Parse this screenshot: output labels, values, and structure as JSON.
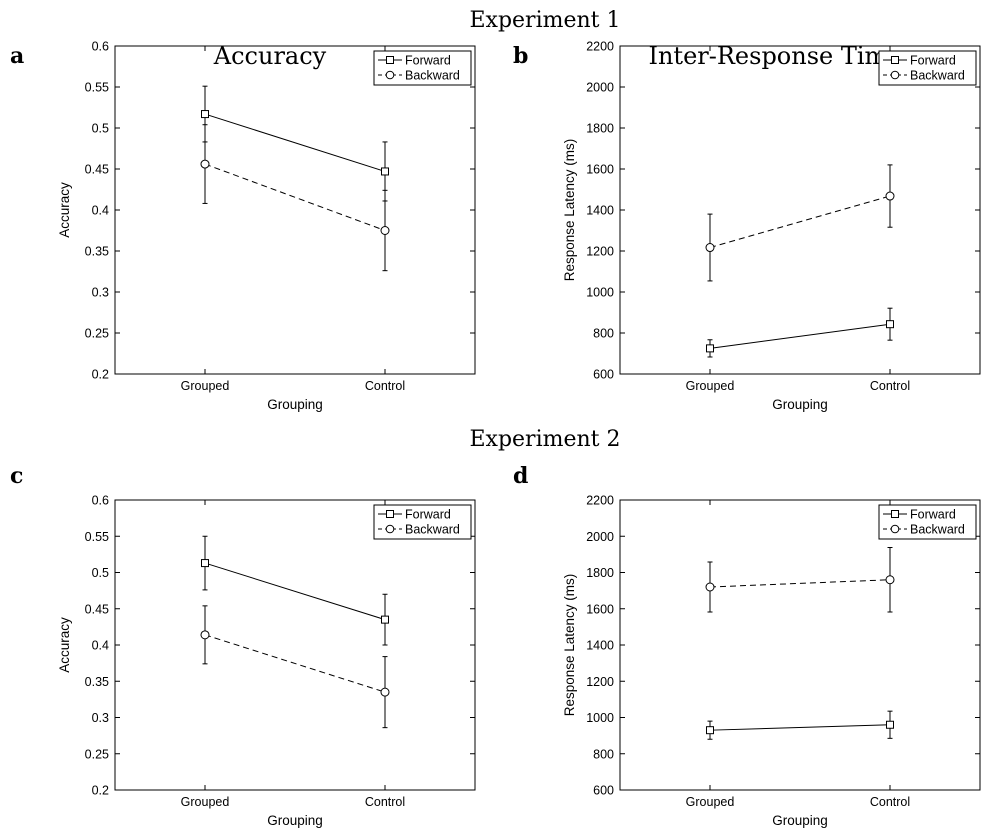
{
  "figure": {
    "experiment_titles": [
      "Experiment 1",
      "Experiment 2"
    ]
  },
  "chart_data": [
    {
      "panel": "a",
      "experiment": "Experiment 1",
      "type": "line",
      "title": "Accuracy",
      "xlabel": "Grouping",
      "ylabel": "Accuracy",
      "categories": [
        "Grouped",
        "Control"
      ],
      "ylim": [
        0.2,
        0.6
      ],
      "yticks": [
        0.2,
        0.25,
        0.3,
        0.35,
        0.4,
        0.45,
        0.5,
        0.55,
        0.6
      ],
      "ytick_labels": [
        "0.2",
        "0.25",
        "0.3",
        "0.35",
        "0.4",
        "0.45",
        "0.5",
        "0.55",
        "0.6"
      ],
      "legend_position": "top-right",
      "grid": false,
      "series": [
        {
          "name": "Forward",
          "marker": "square",
          "dash": "solid",
          "values": [
            0.517,
            0.447
          ],
          "err": [
            0.034,
            0.036
          ]
        },
        {
          "name": "Backward",
          "marker": "circle",
          "dash": "dashed",
          "values": [
            0.456,
            0.375
          ],
          "err": [
            0.048,
            0.049
          ]
        }
      ]
    },
    {
      "panel": "b",
      "experiment": "Experiment 1",
      "type": "line",
      "title": "Inter-Response Time",
      "xlabel": "Grouping",
      "ylabel": "Response Latency (ms)",
      "categories": [
        "Grouped",
        "Control"
      ],
      "ylim": [
        600,
        2200
      ],
      "yticks": [
        600,
        800,
        1000,
        1200,
        1400,
        1600,
        1800,
        2000,
        2200
      ],
      "ytick_labels": [
        "600",
        "800",
        "1000",
        "1200",
        "1400",
        "1600",
        "1800",
        "2000",
        "2200"
      ],
      "legend_position": "top-right",
      "grid": false,
      "series": [
        {
          "name": "Forward",
          "marker": "square",
          "dash": "solid",
          "values": [
            725,
            843
          ],
          "err": [
            42,
            78
          ]
        },
        {
          "name": "Backward",
          "marker": "circle",
          "dash": "dashed",
          "values": [
            1217,
            1468
          ],
          "err": [
            163,
            152
          ]
        }
      ]
    },
    {
      "panel": "c",
      "experiment": "Experiment 2",
      "type": "line",
      "title": "",
      "xlabel": "Grouping",
      "ylabel": "Accuracy",
      "categories": [
        "Grouped",
        "Control"
      ],
      "ylim": [
        0.2,
        0.6
      ],
      "yticks": [
        0.2,
        0.25,
        0.3,
        0.35,
        0.4,
        0.45,
        0.5,
        0.55,
        0.6
      ],
      "ytick_labels": [
        "0.2",
        "0.25",
        "0.3",
        "0.35",
        "0.4",
        "0.45",
        "0.5",
        "0.55",
        "0.6"
      ],
      "legend_position": "top-right",
      "grid": false,
      "series": [
        {
          "name": "Forward",
          "marker": "square",
          "dash": "solid",
          "values": [
            0.513,
            0.435
          ],
          "err": [
            0.037,
            0.035
          ]
        },
        {
          "name": "Backward",
          "marker": "circle",
          "dash": "dashed",
          "values": [
            0.414,
            0.335
          ],
          "err": [
            0.04,
            0.049
          ]
        }
      ]
    },
    {
      "panel": "d",
      "experiment": "Experiment 2",
      "type": "line",
      "title": "",
      "xlabel": "Grouping",
      "ylabel": "Response Latency (ms)",
      "categories": [
        "Grouped",
        "Control"
      ],
      "ylim": [
        600,
        2200
      ],
      "yticks": [
        600,
        800,
        1000,
        1200,
        1400,
        1600,
        1800,
        2000,
        2200
      ],
      "ytick_labels": [
        "600",
        "800",
        "1000",
        "1200",
        "1400",
        "1600",
        "1800",
        "2000",
        "2200"
      ],
      "legend_position": "top-right",
      "grid": false,
      "series": [
        {
          "name": "Forward",
          "marker": "square",
          "dash": "solid",
          "values": [
            930,
            960
          ],
          "err": [
            50,
            75
          ]
        },
        {
          "name": "Backward",
          "marker": "circle",
          "dash": "dashed",
          "values": [
            1720,
            1760
          ],
          "err": [
            138,
            178
          ]
        }
      ]
    }
  ]
}
